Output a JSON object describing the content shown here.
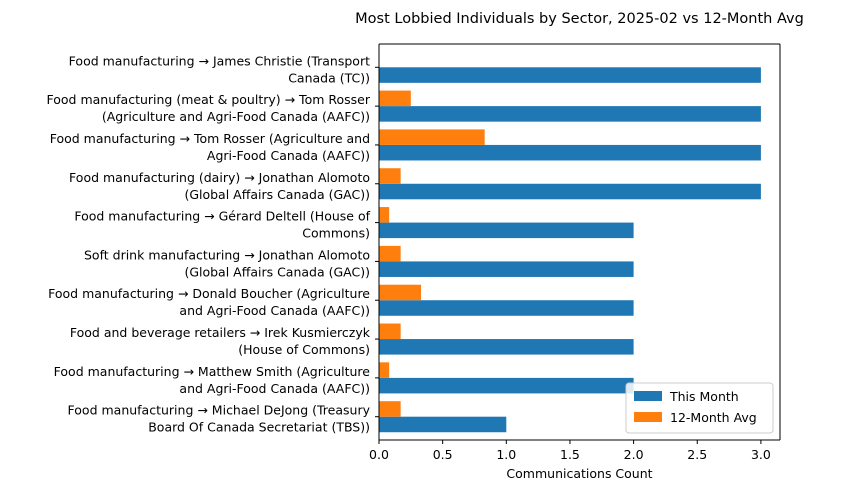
{
  "chart_data": {
    "type": "bar",
    "orientation": "horizontal",
    "title": "Most Lobbied Individuals by Sector, 2025-02 vs 12-Month Avg",
    "xlabel": "Communications Count",
    "ylabel": "",
    "xlim": [
      0,
      3.15
    ],
    "xticks": [
      "0.0",
      "0.5",
      "1.0",
      "1.5",
      "2.0",
      "2.5",
      "3.0"
    ],
    "xtick_values": [
      0,
      0.5,
      1.0,
      1.5,
      2.0,
      2.5,
      3.0
    ],
    "grid": false,
    "legend_position": "bottom-right",
    "categories": [
      [
        "Food manufacturing → James Christie (Transport",
        "Canada (TC))"
      ],
      [
        "Food manufacturing (meat & poultry) → Tom Rosser",
        "(Agriculture and Agri-Food Canada (AAFC))"
      ],
      [
        "Food manufacturing → Tom Rosser (Agriculture and",
        "Agri-Food Canada (AAFC))"
      ],
      [
        "Food manufacturing (dairy) → Jonathan Alomoto",
        "(Global Affairs Canada (GAC))"
      ],
      [
        "Food manufacturing → Gérard Deltell (House of",
        "Commons)"
      ],
      [
        "Soft drink manufacturing  → Jonathan Alomoto",
        "(Global Affairs Canada (GAC))"
      ],
      [
        "Food manufacturing → Donald Boucher (Agriculture",
        "and Agri-Food Canada (AAFC))"
      ],
      [
        "Food and beverage retailers → Irek Kusmierczyk",
        "(House of Commons)"
      ],
      [
        "Food manufacturing → Matthew Smith (Agriculture",
        "and Agri-Food Canada (AAFC))"
      ],
      [
        "Food manufacturing → Michael DeJong (Treasury",
        "Board Of Canada Secretariat (TBS))"
      ]
    ],
    "series": [
      {
        "name": "This Month",
        "color": "#1f77b4",
        "values": [
          3,
          3,
          3,
          3,
          2,
          2,
          2,
          2,
          2,
          1
        ]
      },
      {
        "name": "12-Month Avg",
        "color": "#ff7f0e",
        "values": [
          0,
          0.25,
          0.83,
          0.17,
          0.08,
          0.17,
          0.33,
          0.17,
          0.08,
          0.17
        ]
      }
    ]
  }
}
